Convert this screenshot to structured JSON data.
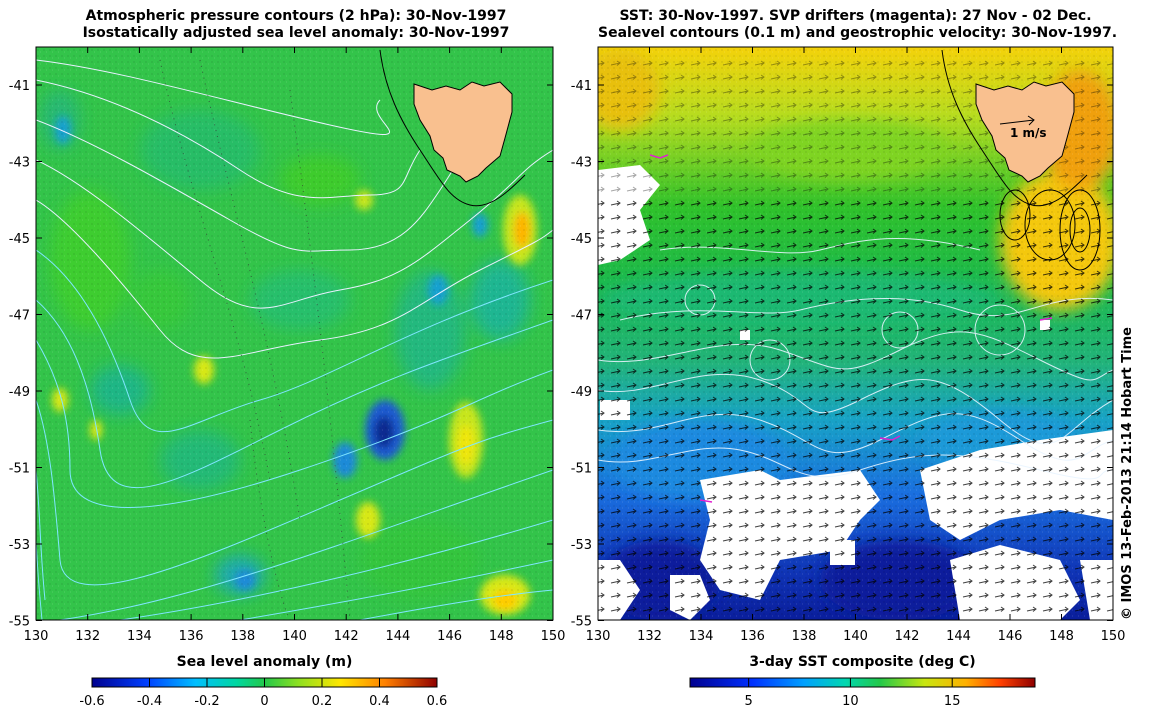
{
  "left_panel": {
    "title_line1": "Atmospheric pressure contours (2 hPa): 30-Nov-1997",
    "title_line2": "Isostatically adjusted sea level anomaly: 30-Nov-1997",
    "x_ticks": [
      "130",
      "132",
      "134",
      "136",
      "138",
      "140",
      "142",
      "144",
      "146",
      "148",
      "150"
    ],
    "y_ticks": [
      "-41",
      "-43",
      "-45",
      "-47",
      "-49",
      "-51",
      "-53",
      "-55"
    ],
    "colorbar": {
      "title": "Sea level anomaly (m)",
      "ticks": [
        "-0.6",
        "-0.4",
        "-0.2",
        "0",
        "0.2",
        "0.4",
        "0.6"
      ]
    }
  },
  "right_panel": {
    "title_line1": "SST: 30-Nov-1997. SVP drifters (magenta): 27 Nov - 02 Dec.",
    "title_line2": "Sealevel contours (0.1 m) and geostrophic velocity: 30-Nov-1997.",
    "x_ticks": [
      "130",
      "132",
      "134",
      "136",
      "138",
      "140",
      "142",
      "144",
      "146",
      "148",
      "150"
    ],
    "y_ticks": [
      "-41",
      "-43",
      "-45",
      "-47",
      "-49",
      "-51",
      "-53",
      "-55"
    ],
    "vector_scale_label": "1 m/s",
    "colorbar": {
      "title": "3-day SST composite (deg C)",
      "ticks": [
        "5",
        "10",
        "15"
      ]
    }
  },
  "credit": "© IMOS 13-Feb-2013 21:14 Hobart Time",
  "colors": {
    "land": "#f9c08f",
    "sla_background": "#33c44a",
    "sst_warm": "#f4d20a",
    "sst_mid": "#1fbd3f",
    "sst_cold": "#1a6fe0",
    "cloud": "#ffffff"
  }
}
